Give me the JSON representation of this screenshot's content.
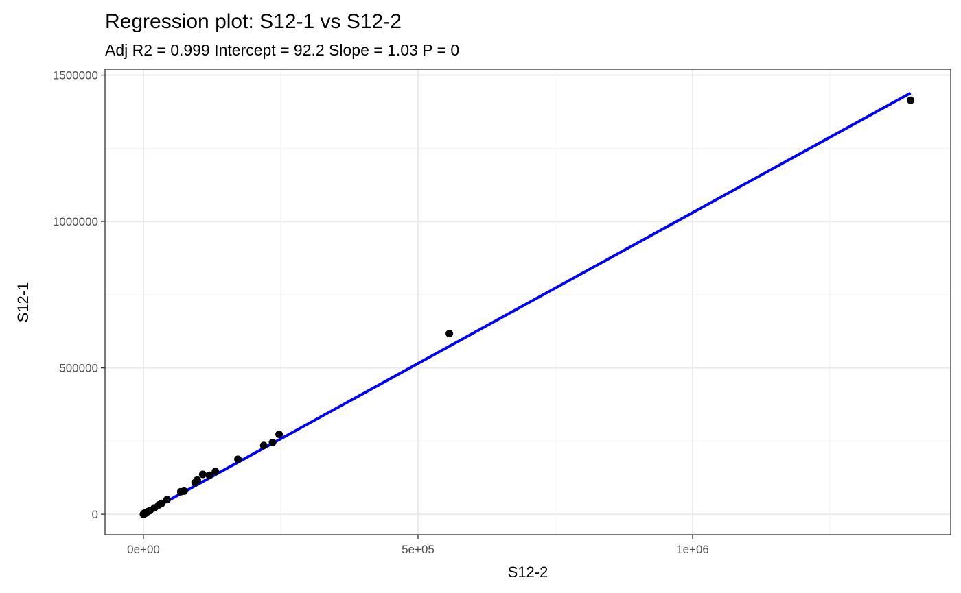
{
  "chart_data": {
    "type": "scatter",
    "title": "Regression plot: S12-1 vs S12-2",
    "subtitle": "Adj R2 =  0.999    Intercept =  92.2    Slope =  1.03    P =  0",
    "xlabel": "S12-2",
    "ylabel": "S12-1",
    "xlim": [
      -70000,
      1470000
    ],
    "ylim": [
      -70000,
      1520000
    ],
    "x_ticks": [
      {
        "value": 0,
        "label": "0e+00"
      },
      {
        "value": 500000,
        "label": "5e+05"
      },
      {
        "value": 1000000,
        "label": "1e+06"
      }
    ],
    "x_minor_ticks": [
      250000,
      750000,
      1250000
    ],
    "y_ticks": [
      {
        "value": 0,
        "label": "0"
      },
      {
        "value": 500000,
        "label": "500000"
      },
      {
        "value": 1000000,
        "label": "1000000"
      },
      {
        "value": 1500000,
        "label": "1500000"
      }
    ],
    "y_minor_ticks": [
      250000,
      750000,
      1250000
    ],
    "grid": true,
    "points_color": "#000000",
    "fit_line_color": "#0000ff",
    "fit_line": {
      "intercept": 92.2,
      "slope": 1.03,
      "x_range": [
        0,
        1397000
      ]
    },
    "points": [
      {
        "x": 0,
        "y": 0
      },
      {
        "x": 500,
        "y": 1000
      },
      {
        "x": 1000,
        "y": 2500
      },
      {
        "x": 1500,
        "y": 1500
      },
      {
        "x": 2000,
        "y": 4000
      },
      {
        "x": 3000,
        "y": 3000
      },
      {
        "x": 5000,
        "y": 6000
      },
      {
        "x": 8000,
        "y": 9000
      },
      {
        "x": 12000,
        "y": 13000
      },
      {
        "x": 20000,
        "y": 22000
      },
      {
        "x": 28000,
        "y": 32000
      },
      {
        "x": 33000,
        "y": 37000
      },
      {
        "x": 43000,
        "y": 50000
      },
      {
        "x": 68000,
        "y": 77000
      },
      {
        "x": 74000,
        "y": 79000
      },
      {
        "x": 94000,
        "y": 108000
      },
      {
        "x": 98000,
        "y": 117000
      },
      {
        "x": 108000,
        "y": 136000
      },
      {
        "x": 120000,
        "y": 133000
      },
      {
        "x": 131000,
        "y": 146000
      },
      {
        "x": 172000,
        "y": 188000
      },
      {
        "x": 219000,
        "y": 235000
      },
      {
        "x": 235000,
        "y": 245000
      },
      {
        "x": 247000,
        "y": 273000
      },
      {
        "x": 557000,
        "y": 617000
      },
      {
        "x": 1397000,
        "y": 1414000
      }
    ]
  }
}
